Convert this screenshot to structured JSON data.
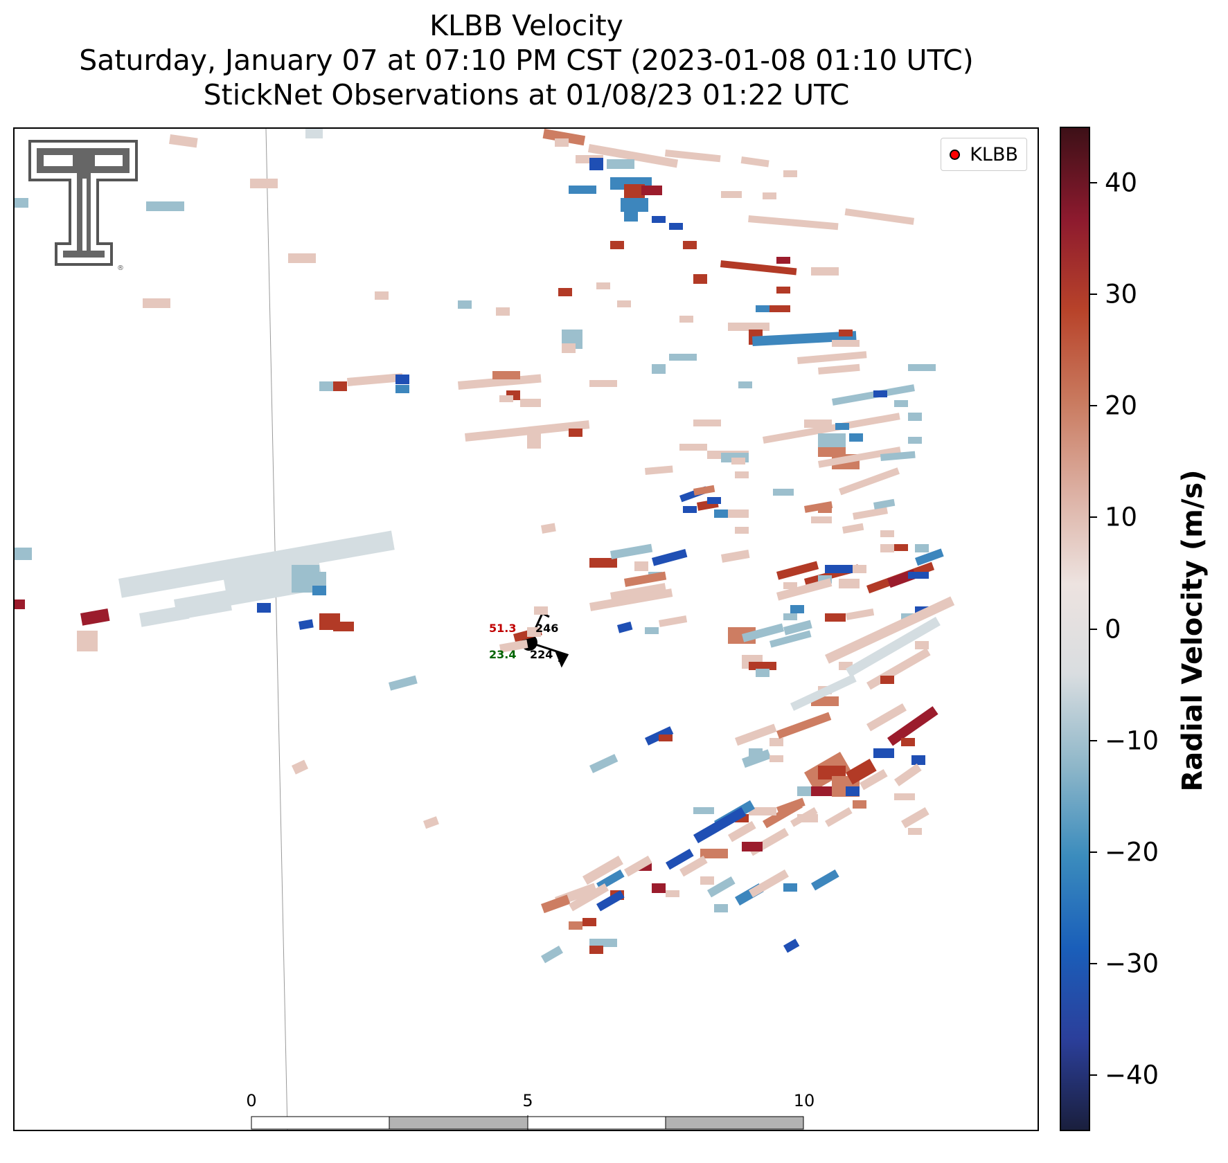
{
  "title": {
    "line1": "KLBB Velocity",
    "line2": "Saturday, January 07 at 07:10 PM CST (2023-01-08 01:10 UTC)",
    "line3": "StickNet Observations at 01/08/23 01:22 UTC"
  },
  "legend": {
    "label": "KLBB",
    "marker_color": "#ff0000"
  },
  "scale_bar": {
    "unit": "km",
    "ticks": [
      "0",
      "5",
      "10"
    ]
  },
  "station": {
    "left_top": "51.3",
    "right_top": "246",
    "left_bottom": "23.4",
    "right_bottom": "224"
  },
  "colorbar": {
    "title": "Radial Velocity (m/s)",
    "range": [
      -45,
      45
    ],
    "ticks": [
      "40",
      "30",
      "20",
      "10",
      "0",
      "−10",
      "−20",
      "−30",
      "−40"
    ],
    "colormap": [
      "#1a1f3d",
      "#2b3f9b",
      "#1a5fba",
      "#3b8cbd",
      "#8fb7c9",
      "#d9dde0",
      "#ede3e0",
      "#dcb0a3",
      "#c97a5f",
      "#b8432a",
      "#8d1a2e",
      "#3d1017"
    ]
  },
  "logo": {
    "icon": "texas-tech-double-t-logo"
  },
  "colors": {
    "strong_inbound": "#1f4fb4",
    "inbound": "#3d86bd",
    "weak_inbound": "#9cbfcd",
    "near_zero": "#d4dde1",
    "weak_outbound": "#e5c7bd",
    "outbound": "#cd7d62",
    "strong_outbound": "#b23a26",
    "max_outbound": "#9b1c2c"
  }
}
